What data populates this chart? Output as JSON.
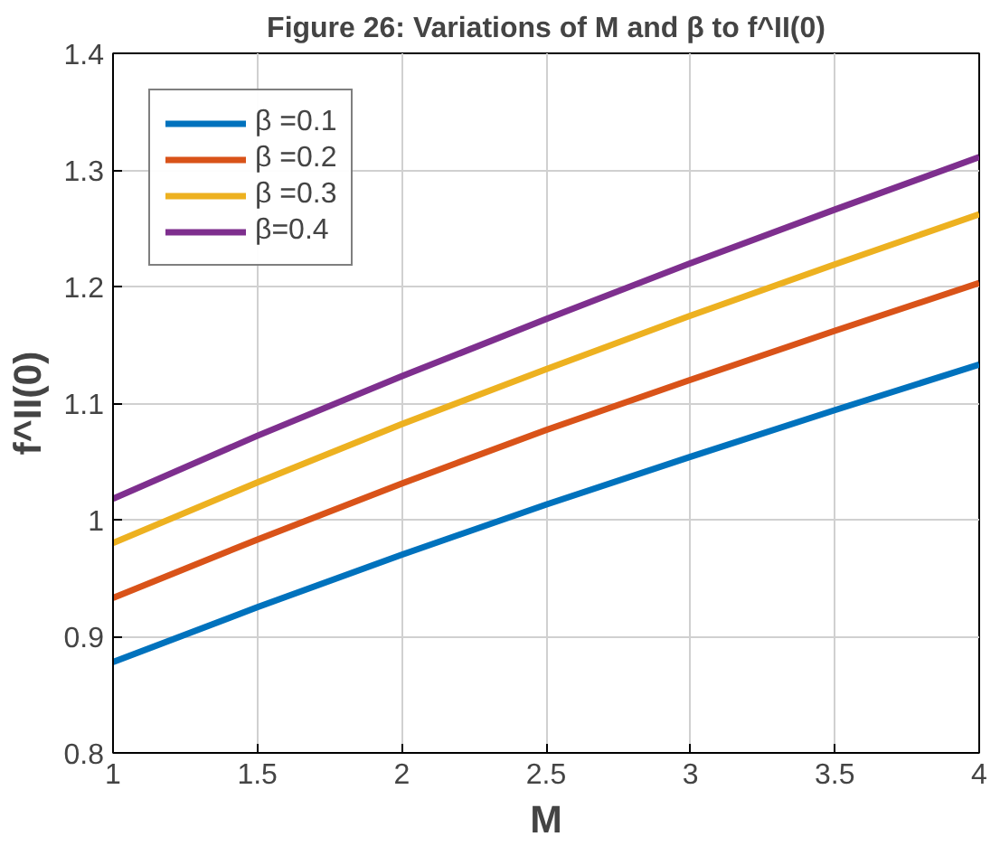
{
  "chart_data": {
    "type": "line",
    "title": "Figure 26: Variations of M and β to f^II(0)",
    "xlabel": "M",
    "ylabel": "f^II(0)",
    "x": [
      1,
      1.5,
      2,
      2.5,
      3,
      3.5,
      4
    ],
    "series": [
      {
        "name": "β =0.1",
        "color": "#0072bd",
        "values": [
          0.878,
          0.925,
          0.97,
          1.013,
          1.054,
          1.094,
          1.133
        ]
      },
      {
        "name": "β =0.2",
        "color": "#d95319",
        "values": [
          0.933,
          0.983,
          1.031,
          1.077,
          1.12,
          1.162,
          1.203
        ]
      },
      {
        "name": "β =0.3",
        "color": "#edb120",
        "values": [
          0.98,
          1.032,
          1.082,
          1.129,
          1.175,
          1.219,
          1.262
        ]
      },
      {
        "name": "β=0.4",
        "color": "#7e2f8e",
        "values": [
          1.018,
          1.072,
          1.123,
          1.172,
          1.22,
          1.266,
          1.311
        ]
      }
    ],
    "xlim": [
      1,
      4
    ],
    "ylim": [
      0.8,
      1.4
    ],
    "xticks": [
      1,
      1.5,
      2,
      2.5,
      3,
      3.5,
      4
    ],
    "yticks": [
      0.8,
      0.9,
      1,
      1.1,
      1.2,
      1.3,
      1.4
    ],
    "grid": true,
    "legend": "top left",
    "line_style": "solid",
    "marker": "none"
  }
}
